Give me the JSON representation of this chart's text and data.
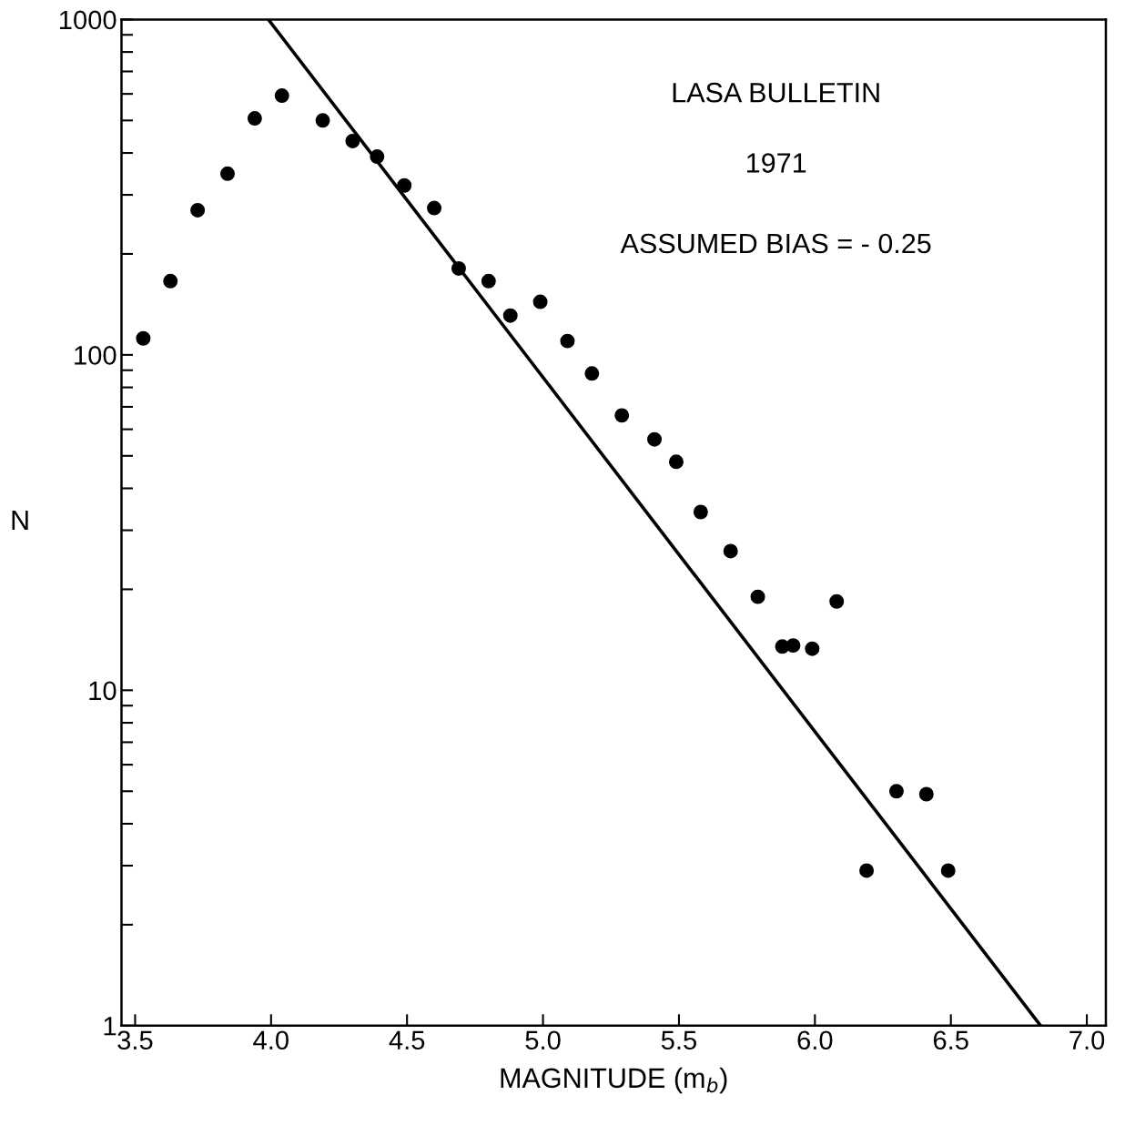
{
  "chart_data": {
    "type": "scatter",
    "xlabel": "MAGNITUDE (m$_{b}$)",
    "ylabel": "N",
    "annotations": [
      "LASA BULLETIN",
      "1971",
      "ASSUMED BIAS = - 0.25"
    ],
    "log": "y",
    "grid": false,
    "marker": "circle",
    "xlim": [
      3.45,
      7.07
    ],
    "ylim": [
      1,
      1000
    ],
    "xticks": [
      3.5,
      {
        "value": 4.0,
        "label": "4.0"
      },
      4.5,
      {
        "value": 5.0,
        "label": "5.0"
      },
      5.5,
      {
        "value": 6.0,
        "label": "6.0"
      },
      6.5,
      {
        "value": 7.0,
        "label": "7.0"
      }
    ],
    "yticks": [
      1,
      10,
      100,
      1000
    ],
    "series": [
      {
        "color": "#000000",
        "x": [
          3.53,
          3.63,
          3.73,
          3.84,
          3.94,
          4.04,
          4.19,
          4.3,
          4.39,
          4.49,
          4.6,
          4.69,
          4.8,
          4.88,
          4.99,
          5.09,
          5.18,
          5.29,
          5.41,
          5.49,
          5.58,
          5.69,
          5.79,
          5.88,
          5.92,
          5.99,
          6.08,
          6.19,
          6.3,
          6.41,
          6.49
        ],
        "values": [
          112,
          166,
          270,
          347,
          507,
          593,
          500,
          434,
          390,
          320,
          274,
          181,
          166,
          131,
          144,
          110,
          88,
          66,
          56,
          48,
          34,
          26,
          19,
          13.5,
          13.6,
          13.3,
          18.4,
          2.9,
          5.0,
          4.9,
          2.9
        ]
      },
      {
        "type": "line",
        "color": "#000000",
        "line_style": "solid",
        "marker": "none",
        "x": [
          3.99,
          6.83
        ],
        "values": [
          1000,
          1
        ]
      }
    ]
  }
}
